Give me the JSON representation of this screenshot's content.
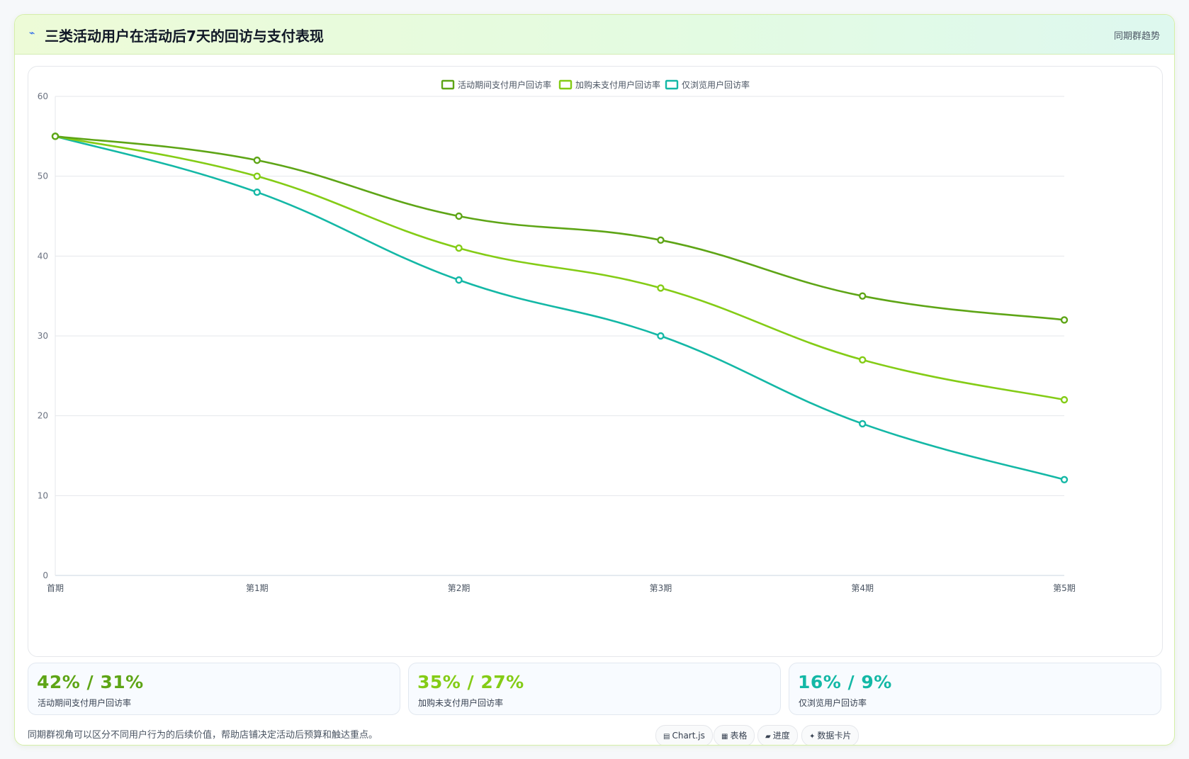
{
  "header": {
    "icon": "lightning-icon",
    "title": "三类活动用户在活动后7天的回访与支付表现",
    "tag": "同期群趋势"
  },
  "chart_data": {
    "type": "line",
    "categories": [
      "首期",
      "第1期",
      "第2期",
      "第3期",
      "第4期",
      "第5期"
    ],
    "ylim": [
      0,
      60
    ],
    "yticks": [
      0,
      10,
      20,
      30,
      40,
      50,
      60
    ],
    "grid": true,
    "legend_position": "top-center",
    "series": [
      {
        "name": "活动期间支付用户回访率",
        "color": "#5ea516",
        "values": [
          55,
          52,
          45,
          42,
          35,
          32
        ]
      },
      {
        "name": "加购未支付用户回访率",
        "color": "#84cc16",
        "values": [
          55,
          50,
          41,
          36,
          27,
          22
        ]
      },
      {
        "name": "仅浏览用户回访率",
        "color": "#14b8a6",
        "values": [
          55,
          48,
          37,
          30,
          19,
          12
        ]
      }
    ]
  },
  "cards": [
    {
      "value": "42% / 31%",
      "label": "活动期间支付用户回访率",
      "color": "#5ea516"
    },
    {
      "value": "35% / 27%",
      "label": "加购未支付用户回访率",
      "color": "#84cc16"
    },
    {
      "value": "16% / 9%",
      "label": "仅浏览用户回访率",
      "color": "#14b8a6"
    }
  ],
  "footnote": "同期群视角可以区分不同用户行为的后续价值，帮助店铺决定活动后预算和触达重点。",
  "badges": [
    {
      "icon": "chart-icon",
      "glyph": "▤",
      "label": "Chart.js"
    },
    {
      "icon": "table-icon",
      "glyph": "▦",
      "label": "表格"
    },
    {
      "icon": "progress-icon",
      "glyph": "▰",
      "label": "进度"
    },
    {
      "icon": "sparkle-icon",
      "glyph": "✦",
      "label": "数据卡片"
    }
  ]
}
